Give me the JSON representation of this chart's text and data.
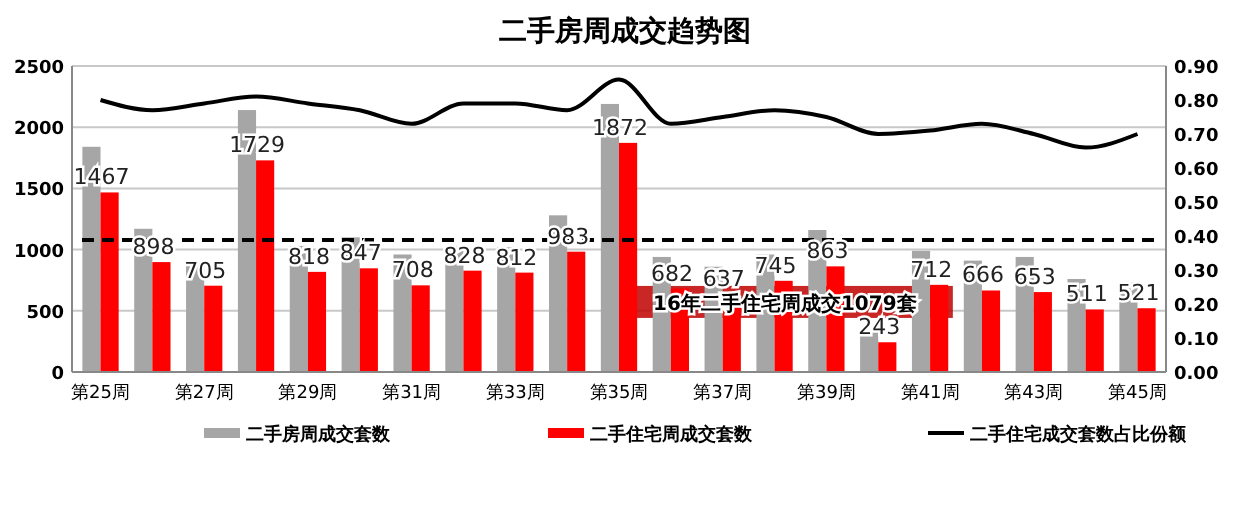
{
  "chart_data": {
    "type": "bar",
    "title": "二手房周成交趋势图",
    "categories": [
      "第25周",
      null,
      "第27周",
      null,
      "第29周",
      null,
      "第31周",
      null,
      "第33周",
      null,
      "第35周",
      null,
      "第37周",
      null,
      "第39周",
      null,
      "第41周",
      null,
      "第43周",
      null,
      "第45周"
    ],
    "series": [
      {
        "name": "二手房周成交套数",
        "color": "#a6a6a6",
        "values": [
          1840,
          1170,
          890,
          2140,
          1030,
          1100,
          960,
          1030,
          1020,
          1280,
          2190,
          940,
          860,
          960,
          1160,
          340,
          990,
          910,
          940,
          760,
          730
        ]
      },
      {
        "name": "二手住宅周成交套数",
        "color": "#ff0000",
        "values": [
          1467,
          898,
          705,
          1729,
          818,
          847,
          708,
          828,
          812,
          983,
          1872,
          682,
          637,
          745,
          863,
          243,
          712,
          666,
          653,
          511,
          521
        ],
        "value_labels": [
          "1467",
          "898",
          "705",
          "1729",
          "818",
          "847",
          "708",
          "828",
          "812",
          "983",
          "1872",
          "682",
          "637",
          "745",
          "863",
          "243",
          "712",
          "666",
          "653",
          "511",
          "521"
        ]
      },
      {
        "name": "二手住宅成交套数占比份额",
        "type": "line",
        "axis": "y2",
        "color": "#000000",
        "values": [
          0.8,
          0.77,
          0.79,
          0.81,
          0.79,
          0.77,
          0.73,
          0.79,
          0.79,
          0.77,
          0.86,
          0.73,
          0.75,
          0.77,
          0.75,
          0.7,
          0.71,
          0.73,
          0.7,
          0.66,
          0.7
        ]
      }
    ],
    "ylim": [
      0,
      2500
    ],
    "yticks": [
      0,
      500,
      1000,
      1500,
      2000,
      2500
    ],
    "y2lim": [
      0,
      0.9
    ],
    "y2ticks": [
      {
        "value": 0,
        "label": "0.00"
      },
      {
        "value": 0.1,
        "label": "0.10"
      },
      {
        "value": 0.2,
        "label": "0.20"
      },
      {
        "value": 0.3,
        "label": "0.30"
      },
      {
        "value": 0.4,
        "label": "0.40"
      },
      {
        "value": 0.5,
        "label": "0.50"
      },
      {
        "value": 0.6,
        "label": "0.60"
      },
      {
        "value": 0.7,
        "label": "0.70"
      },
      {
        "value": 0.8,
        "label": "0.80"
      },
      {
        "value": 0.9,
        "label": "0.90"
      }
    ],
    "ref_lines": [
      {
        "axis": "y",
        "value": 1079,
        "label": "16年二手住宅周成交1079套",
        "color": "#000000",
        "line_style": "dashed"
      }
    ],
    "grid": "y",
    "legend": "bottom",
    "marker": "none"
  }
}
